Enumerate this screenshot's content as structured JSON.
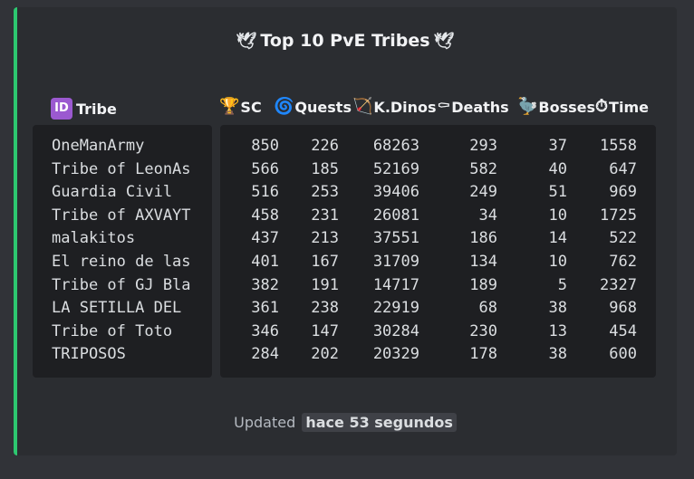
{
  "embed": {
    "accent_color": "#2dc770",
    "title": "Top 10 PvE Tribes",
    "title_icon_left": "dove-emoji",
    "title_icon_right": "dove-emoji",
    "headers": {
      "tribe": {
        "icon": "id-icon",
        "label": "Tribe"
      },
      "sc": {
        "icon": "trophy-icon",
        "label": "SC"
      },
      "quests": {
        "icon": "cyclone-icon",
        "label": "Quests"
      },
      "kdinos": {
        "icon": "bow-and-arrow-icon",
        "label": "K.Dinos"
      },
      "deaths": {
        "icon": "coffin-icon",
        "label": "Deaths"
      },
      "bosses": {
        "icon": "dodo-icon",
        "label": "Bosses"
      },
      "time": {
        "icon": "stopwatch-icon",
        "label": "Time"
      }
    },
    "rows": [
      {
        "tribe": "OneManArmy",
        "sc": "850",
        "quests": "226",
        "kdinos": "68263",
        "deaths": "293",
        "bosses": "37",
        "time": "1558"
      },
      {
        "tribe": "Tribe of LeonAs",
        "sc": "566",
        "quests": "185",
        "kdinos": "52169",
        "deaths": "582",
        "bosses": "40",
        "time": "647"
      },
      {
        "tribe": "Guardia Civil",
        "sc": "516",
        "quests": "253",
        "kdinos": "39406",
        "deaths": "249",
        "bosses": "51",
        "time": "969"
      },
      {
        "tribe": "Tribe of AXVAYT",
        "sc": "458",
        "quests": "231",
        "kdinos": "26081",
        "deaths": "34",
        "bosses": "10",
        "time": "1725"
      },
      {
        "tribe": "malakitos",
        "sc": "437",
        "quests": "213",
        "kdinos": "37551",
        "deaths": "186",
        "bosses": "14",
        "time": "522"
      },
      {
        "tribe": "El reino de las",
        "sc": "401",
        "quests": "167",
        "kdinos": "31709",
        "deaths": "134",
        "bosses": "10",
        "time": "762"
      },
      {
        "tribe": "Tribe of GJ Bla",
        "sc": "382",
        "quests": "191",
        "kdinos": "14717",
        "deaths": "189",
        "bosses": "5",
        "time": "2327"
      },
      {
        "tribe": "LA SETILLA DEL",
        "sc": "361",
        "quests": "238",
        "kdinos": "22919",
        "deaths": "68",
        "bosses": "38",
        "time": "968"
      },
      {
        "tribe": "Tribe of Toto",
        "sc": "346",
        "quests": "147",
        "kdinos": "30284",
        "deaths": "230",
        "bosses": "13",
        "time": "454"
      },
      {
        "tribe": "TRIPOSOS",
        "sc": "284",
        "quests": "202",
        "kdinos": "20329",
        "deaths": "178",
        "bosses": "38",
        "time": "600"
      }
    ],
    "footer": {
      "prefix": "Updated",
      "timestamp": "hace 53 segundos"
    }
  }
}
